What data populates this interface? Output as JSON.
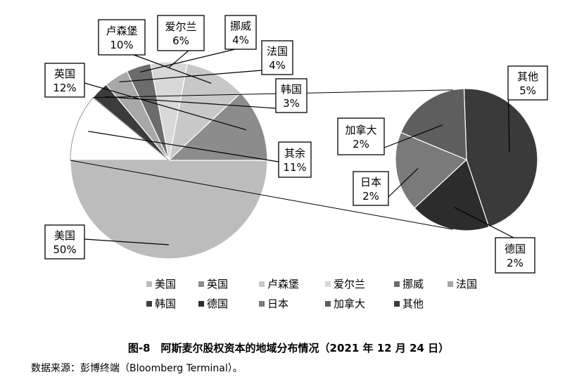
{
  "chart_data": {
    "type": "pie",
    "main_pie": {
      "slices": [
        {
          "label": "美国",
          "value": 50,
          "value_label": "50%",
          "color": "#bcbcbc"
        },
        {
          "label": "英国",
          "value": 12,
          "value_label": "12%",
          "color": "#8c8c8c"
        },
        {
          "label": "卢森堡",
          "value": 10,
          "value_label": "10%",
          "color": "#c8c8c8"
        },
        {
          "label": "爱尔兰",
          "value": 6,
          "value_label": "6%",
          "color": "#d8d8d8"
        },
        {
          "label": "挪威",
          "value": 4,
          "value_label": "4%",
          "color": "#6c6c6c"
        },
        {
          "label": "法国",
          "value": 4,
          "value_label": "4%",
          "color": "#a8a8a8"
        },
        {
          "label": "韩国",
          "value": 3,
          "value_label": "3%",
          "color": "#3c3c3c"
        },
        {
          "label": "其余",
          "value": 11,
          "value_label": "11%",
          "color": "#ffffff"
        }
      ]
    },
    "secondary_pie": {
      "of": "其余",
      "slices": [
        {
          "label": "其他",
          "value": 5,
          "value_label": "5%",
          "color": "#3a3a3a"
        },
        {
          "label": "德国",
          "value": 2,
          "value_label": "2%",
          "color": "#2c2c2c"
        },
        {
          "label": "日本",
          "value": 2,
          "value_label": "2%",
          "color": "#7a7a7a"
        },
        {
          "label": "加拿大",
          "value": 2,
          "value_label": "2%",
          "color": "#5e5e5e"
        }
      ]
    },
    "legend": {
      "placement": "bottom",
      "items": [
        {
          "label": "美国",
          "color": "#bcbcbc"
        },
        {
          "label": "英国",
          "color": "#8c8c8c"
        },
        {
          "label": "卢森堡",
          "color": "#c8c8c8"
        },
        {
          "label": "爱尔兰",
          "color": "#d8d8d8"
        },
        {
          "label": "挪威",
          "color": "#6c6c6c"
        },
        {
          "label": "法国",
          "color": "#a8a8a8"
        },
        {
          "label": "韩国",
          "color": "#3c3c3c"
        },
        {
          "label": "德国",
          "color": "#2c2c2c"
        },
        {
          "label": "日本",
          "color": "#7a7a7a"
        },
        {
          "label": "加拿大",
          "color": "#5e5e5e"
        },
        {
          "label": "其他",
          "color": "#3a3a3a"
        }
      ]
    }
  },
  "caption": "图-8　阿斯麦尔股权资本的地域分布情况（2021 年 12 月 24 日）",
  "source": "数据来源：彭博终端（Bloomberg Terminal）。"
}
